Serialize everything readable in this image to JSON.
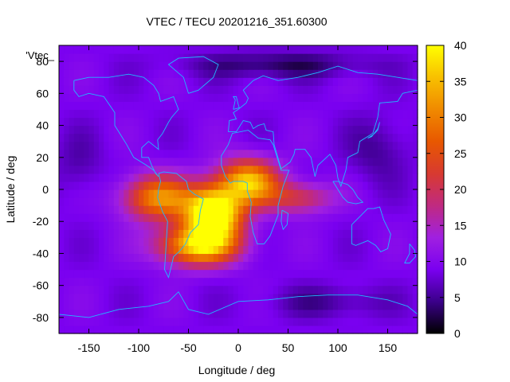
{
  "chart_data": {
    "type": "heatmap",
    "title": "VTEC / TECU 20201216_351.60300",
    "xlabel": "Longitude / deg",
    "ylabel": "Latitude / deg",
    "series_label": "'Vtec_",
    "xlim": [
      -180,
      180
    ],
    "ylim": [
      -90,
      90
    ],
    "x_ticks": [
      -150,
      -100,
      -50,
      0,
      50,
      100,
      150
    ],
    "y_ticks": [
      80,
      60,
      40,
      20,
      0,
      -20,
      -40,
      -60,
      -80
    ],
    "colorbar": {
      "range": [
        0,
        40
      ],
      "ticks": [
        0,
        5,
        10,
        15,
        20,
        25,
        30,
        35,
        40
      ],
      "palette": [
        "#000000",
        "#3b008a",
        "#7a00f0",
        "#a020e0",
        "#c02a80",
        "#d83a30",
        "#e85800",
        "#f08a00",
        "#f8c000",
        "#ffff00"
      ]
    },
    "background_level": 9,
    "features": [
      {
        "name": "south-america-peak",
        "lon": -25,
        "lat": -15,
        "value": 38,
        "spread_lon": 28,
        "spread_lat": 16
      },
      {
        "name": "equatorial-anomaly-west",
        "lon": -80,
        "lat": -5,
        "value": 22,
        "spread_lon": 35,
        "spread_lat": 14
      },
      {
        "name": "equatorial-anomaly-east",
        "lon": 10,
        "lat": 5,
        "value": 26,
        "spread_lon": 30,
        "spread_lat": 14
      },
      {
        "name": "south-atlantic-high",
        "lon": -40,
        "lat": -35,
        "value": 27,
        "spread_lon": 40,
        "spread_lat": 12
      },
      {
        "name": "arabian-sea-tail",
        "lon": 60,
        "lat": -5,
        "value": 12,
        "spread_lon": 35,
        "spread_lat": 10
      },
      {
        "name": "arctic-low",
        "lon": 40,
        "lat": 78,
        "value": -6,
        "spread_lon": 90,
        "spread_lat": 8
      },
      {
        "name": "asia-night-low",
        "lon": 140,
        "lat": 25,
        "value": -4,
        "spread_lon": 30,
        "spread_lat": 20
      },
      {
        "name": "pacific-night-low",
        "lon": -160,
        "lat": 15,
        "value": -3,
        "spread_lon": 25,
        "spread_lat": 20
      },
      {
        "name": "antarctic-low",
        "lon": 90,
        "lat": -70,
        "value": -4,
        "spread_lon": 60,
        "spread_lat": 10
      }
    ]
  }
}
